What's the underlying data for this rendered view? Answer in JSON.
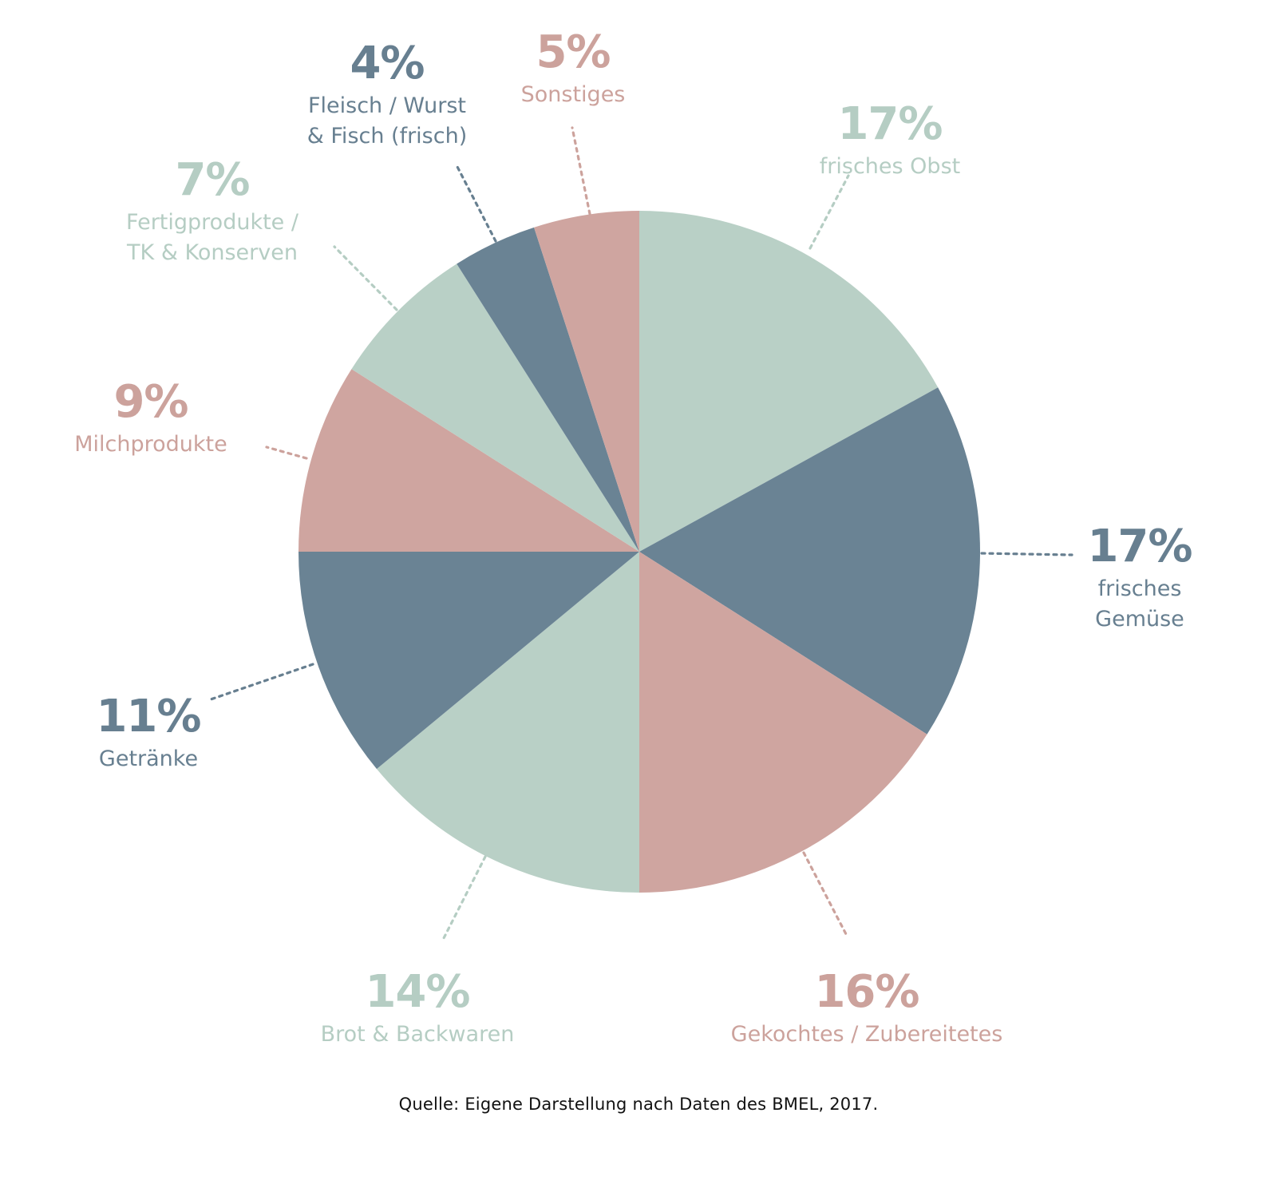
{
  "chart_data": {
    "type": "pie",
    "start": "12 o'clock",
    "direction": "clockwise",
    "slices": [
      {
        "label": "frisches Obst",
        "value": 17,
        "value_label": "17%",
        "color": "#b9d0c6"
      },
      {
        "label": "frisches Gemüse",
        "value": 17,
        "value_label": "17%",
        "color": "#6a8394"
      },
      {
        "label": "Gekochtes / Zubereitetes",
        "value": 16,
        "value_label": "16%",
        "color": "#cfa5a0"
      },
      {
        "label": "Brot & Backwaren",
        "value": 14,
        "value_label": "14%",
        "color": "#b9d0c6"
      },
      {
        "label": "Getränke",
        "value": 11,
        "value_label": "11%",
        "color": "#6a8394"
      },
      {
        "label": "Milchprodukte",
        "value": 9,
        "value_label": "9%",
        "color": "#cfa5a0"
      },
      {
        "label": "Fertigprodukte / TK & Konserven",
        "value": 7,
        "value_label": "7%",
        "color": "#b9d0c6"
      },
      {
        "label": "Fleisch / Wurst & Fisch (frisch)",
        "value": 4,
        "value_label": "4%",
        "color": "#6a8394"
      },
      {
        "label": "Sonstiges",
        "value": 5,
        "value_label": "5%",
        "color": "#cfa5a0"
      }
    ]
  },
  "source": "Quelle: Eigene Darstellung nach Daten des BMEL, 2017."
}
